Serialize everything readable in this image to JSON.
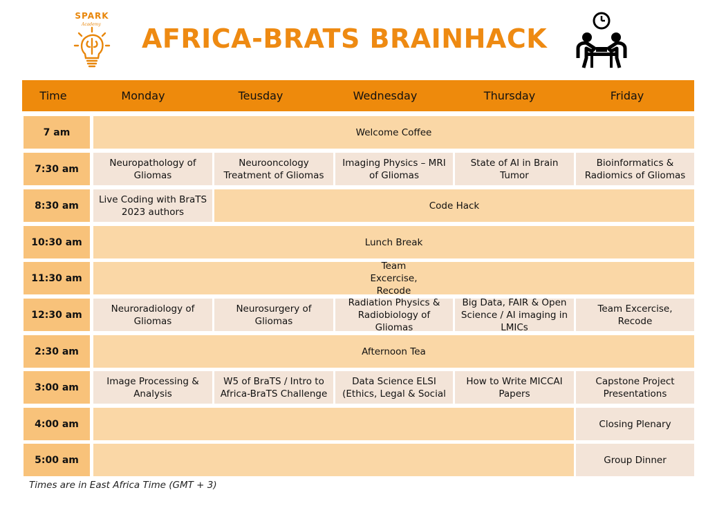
{
  "logo": {
    "name": "SPARK",
    "sub": "Academy"
  },
  "title": "AFRICA-BRATS BRAINHACK",
  "header": [
    "Time",
    "Monday",
    "Teusday",
    "Wednesday",
    "Thursday",
    "Friday"
  ],
  "times": [
    "7 am",
    "7:30 am",
    "8:30 am",
    "10:30 am",
    "11:30 am",
    "12:30 am",
    "2:30 am",
    "3:00 am",
    "4:00 am",
    "5:00 am"
  ],
  "sessions": {
    "welcome_coffee": "Welcome Coffee",
    "mon_730": "Neuropathology of Gliomas",
    "tue_730": "Neurooncology Treatment of Gliomas",
    "wed_730": "Imaging Physics – MRI of Gliomas",
    "thu_730": "State of AI in Brain Tumor",
    "fri_730": "Bioinformatics & Radiomics of Gliomas",
    "mon_830": "Live Coding with BraTS 2023 authors",
    "code_hack": "Code Hack",
    "lunch": "Lunch Break",
    "team_1130": "Team Excercise, Recode",
    "mon_1230": "Neuroradiology of Gliomas",
    "tue_1230": "Neurosurgery of Gliomas",
    "wed_1230": "Radiation Physics & Radiobiology of Gliomas",
    "thu_1230": "Big Data, FAIR & Open Science / AI imaging in LMICs",
    "fri_1230": "Team Excercise, Recode",
    "afternoon_tea": "Afternoon Tea",
    "mon_300": "Image Processing & Analysis",
    "tue_300": "W5 of BraTS / Intro to Africa-BraTS Challenge",
    "wed_300": "Data Science ELSI (Ethics, Legal & Social",
    "thu_300": "How to Write MICCAI Papers",
    "fri_300": "Capstone Project Presentations",
    "closing": "Closing Plenary",
    "dinner": "Group Dinner"
  },
  "footnote": "Times are in East Africa Time (GMT + 3)"
}
